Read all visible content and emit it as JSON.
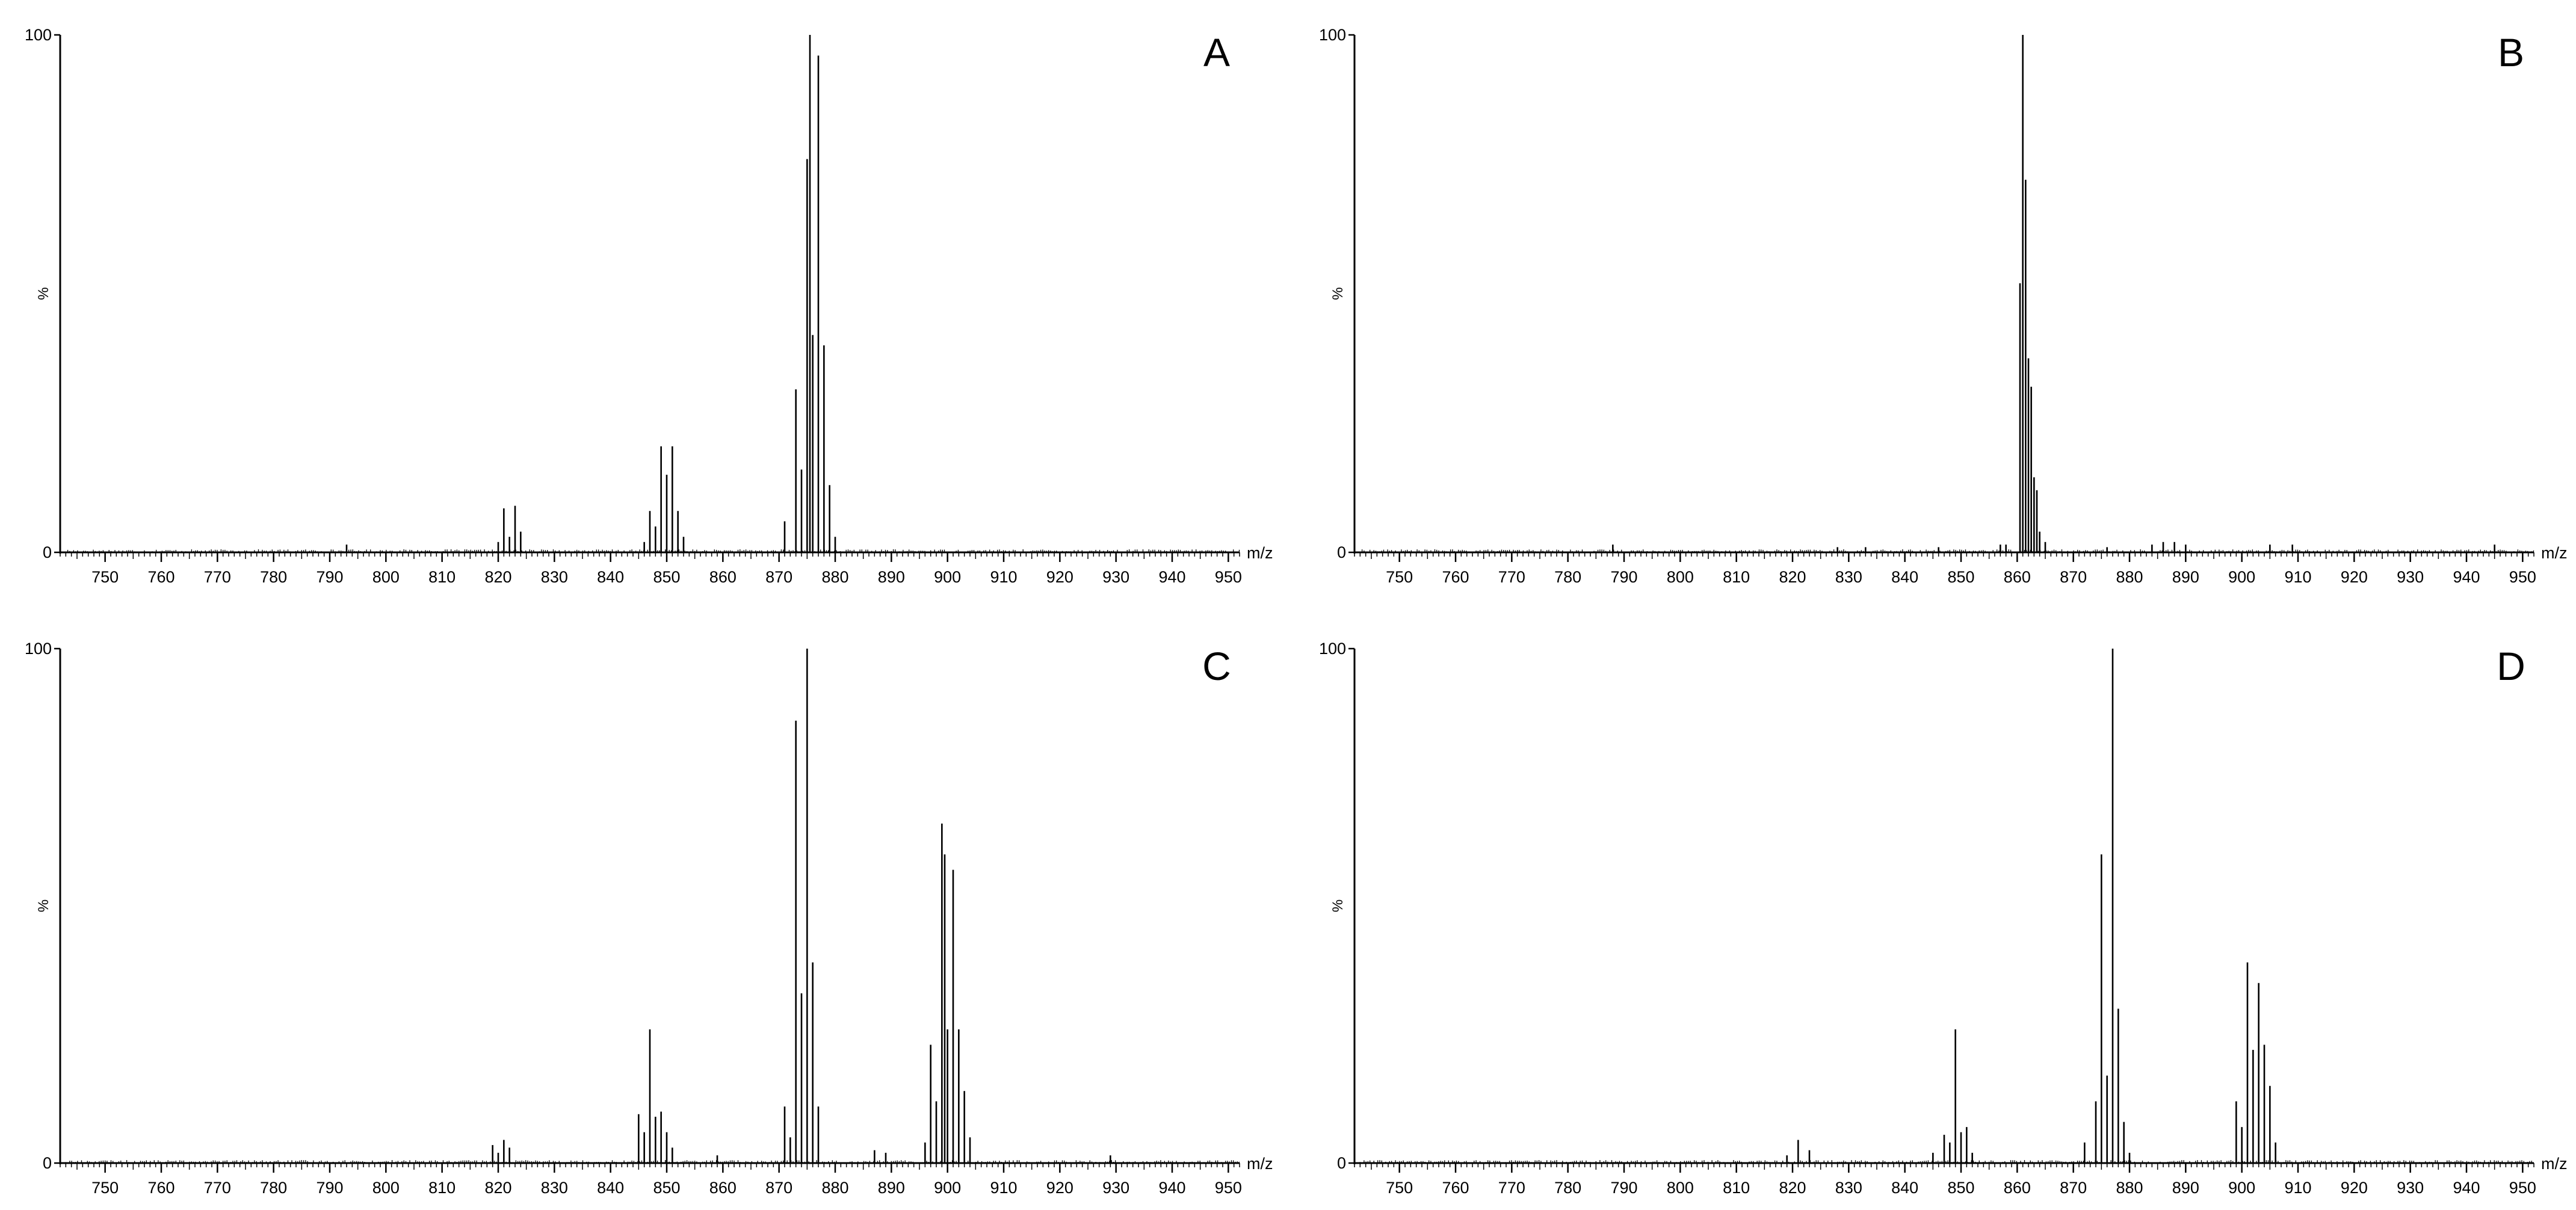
{
  "chart_data": [
    {
      "type": "line",
      "panel_label": "A",
      "xlabel": "m/z",
      "ylabel": "%",
      "xlim": [
        742,
        952
      ],
      "ylim": [
        0,
        100
      ],
      "x_ticks": [
        750,
        760,
        770,
        780,
        790,
        800,
        810,
        820,
        830,
        840,
        850,
        860,
        870,
        880,
        890,
        900,
        910,
        920,
        930,
        940,
        950
      ],
      "y_ticks": [
        0,
        100
      ],
      "peaks": [
        {
          "mz": 793,
          "intensity": 1.5
        },
        {
          "mz": 820,
          "intensity": 2
        },
        {
          "mz": 821,
          "intensity": 8.5
        },
        {
          "mz": 822,
          "intensity": 3
        },
        {
          "mz": 823,
          "intensity": 9
        },
        {
          "mz": 824,
          "intensity": 4
        },
        {
          "mz": 846,
          "intensity": 2
        },
        {
          "mz": 847,
          "intensity": 8
        },
        {
          "mz": 848,
          "intensity": 5
        },
        {
          "mz": 849,
          "intensity": 20.5
        },
        {
          "mz": 850,
          "intensity": 15
        },
        {
          "mz": 851,
          "intensity": 20.5
        },
        {
          "mz": 852,
          "intensity": 8
        },
        {
          "mz": 853,
          "intensity": 3
        },
        {
          "mz": 871,
          "intensity": 6
        },
        {
          "mz": 873,
          "intensity": 31.5
        },
        {
          "mz": 874,
          "intensity": 16
        },
        {
          "mz": 875,
          "intensity": 76
        },
        {
          "mz": 875.5,
          "intensity": 100
        },
        {
          "mz": 876,
          "intensity": 42
        },
        {
          "mz": 877,
          "intensity": 96
        },
        {
          "mz": 878,
          "intensity": 40
        },
        {
          "mz": 879,
          "intensity": 13
        },
        {
          "mz": 880,
          "intensity": 3
        }
      ]
    },
    {
      "type": "line",
      "panel_label": "B",
      "xlabel": "m/z",
      "ylabel": "%",
      "xlim": [
        742,
        952
      ],
      "ylim": [
        0,
        100
      ],
      "x_ticks": [
        750,
        760,
        770,
        780,
        790,
        800,
        810,
        820,
        830,
        840,
        850,
        860,
        870,
        880,
        890,
        900,
        910,
        920,
        930,
        940,
        950
      ],
      "y_ticks": [
        0,
        100
      ],
      "peaks": [
        {
          "mz": 788,
          "intensity": 1.5
        },
        {
          "mz": 828,
          "intensity": 1
        },
        {
          "mz": 833,
          "intensity": 1
        },
        {
          "mz": 846,
          "intensity": 1
        },
        {
          "mz": 857,
          "intensity": 1.5
        },
        {
          "mz": 858,
          "intensity": 1.5
        },
        {
          "mz": 860.5,
          "intensity": 52
        },
        {
          "mz": 861,
          "intensity": 100
        },
        {
          "mz": 861.5,
          "intensity": 72
        },
        {
          "mz": 862,
          "intensity": 37.5
        },
        {
          "mz": 862.5,
          "intensity": 32
        },
        {
          "mz": 863,
          "intensity": 14.5
        },
        {
          "mz": 863.5,
          "intensity": 12
        },
        {
          "mz": 864,
          "intensity": 4
        },
        {
          "mz": 865,
          "intensity": 2
        },
        {
          "mz": 876,
          "intensity": 1
        },
        {
          "mz": 884,
          "intensity": 1.5
        },
        {
          "mz": 886,
          "intensity": 2
        },
        {
          "mz": 888,
          "intensity": 2
        },
        {
          "mz": 890,
          "intensity": 1.5
        },
        {
          "mz": 905,
          "intensity": 1.5
        },
        {
          "mz": 909,
          "intensity": 1.5
        },
        {
          "mz": 945,
          "intensity": 1.5
        }
      ]
    },
    {
      "type": "line",
      "panel_label": "C",
      "xlabel": "m/z",
      "ylabel": "%",
      "xlim": [
        742,
        952
      ],
      "ylim": [
        0,
        100
      ],
      "x_ticks": [
        750,
        760,
        770,
        780,
        790,
        800,
        810,
        820,
        830,
        840,
        850,
        860,
        870,
        880,
        890,
        900,
        910,
        920,
        930,
        940,
        950
      ],
      "y_ticks": [
        0,
        100
      ],
      "peaks": [
        {
          "mz": 819,
          "intensity": 3.5
        },
        {
          "mz": 820,
          "intensity": 2
        },
        {
          "mz": 821,
          "intensity": 4.5
        },
        {
          "mz": 822,
          "intensity": 3
        },
        {
          "mz": 845,
          "intensity": 9.5
        },
        {
          "mz": 846,
          "intensity": 6
        },
        {
          "mz": 847,
          "intensity": 26
        },
        {
          "mz": 848,
          "intensity": 9
        },
        {
          "mz": 849,
          "intensity": 10
        },
        {
          "mz": 850,
          "intensity": 6
        },
        {
          "mz": 851,
          "intensity": 3
        },
        {
          "mz": 859,
          "intensity": 1.5
        },
        {
          "mz": 871,
          "intensity": 11
        },
        {
          "mz": 872,
          "intensity": 5
        },
        {
          "mz": 873,
          "intensity": 86
        },
        {
          "mz": 874,
          "intensity": 33
        },
        {
          "mz": 875,
          "intensity": 100
        },
        {
          "mz": 876,
          "intensity": 39
        },
        {
          "mz": 877,
          "intensity": 11
        },
        {
          "mz": 887,
          "intensity": 2.5
        },
        {
          "mz": 889,
          "intensity": 2
        },
        {
          "mz": 896,
          "intensity": 4
        },
        {
          "mz": 897,
          "intensity": 23
        },
        {
          "mz": 898,
          "intensity": 12
        },
        {
          "mz": 899,
          "intensity": 66
        },
        {
          "mz": 899.5,
          "intensity": 60
        },
        {
          "mz": 900,
          "intensity": 26
        },
        {
          "mz": 901,
          "intensity": 57
        },
        {
          "mz": 902,
          "intensity": 26
        },
        {
          "mz": 903,
          "intensity": 14
        },
        {
          "mz": 904,
          "intensity": 5
        },
        {
          "mz": 929,
          "intensity": 1.5
        }
      ]
    },
    {
      "type": "line",
      "panel_label": "D",
      "xlabel": "m/z",
      "ylabel": "%",
      "xlim": [
        742,
        952
      ],
      "ylim": [
        0,
        100
      ],
      "x_ticks": [
        750,
        760,
        770,
        780,
        790,
        800,
        810,
        820,
        830,
        840,
        850,
        860,
        870,
        880,
        890,
        900,
        910,
        920,
        930,
        940,
        950
      ],
      "y_ticks": [
        0,
        100
      ],
      "peaks": [
        {
          "mz": 819,
          "intensity": 1.5
        },
        {
          "mz": 821,
          "intensity": 4.5
        },
        {
          "mz": 823,
          "intensity": 2.5
        },
        {
          "mz": 845,
          "intensity": 2
        },
        {
          "mz": 847,
          "intensity": 5.5
        },
        {
          "mz": 848,
          "intensity": 4
        },
        {
          "mz": 849,
          "intensity": 26
        },
        {
          "mz": 850,
          "intensity": 6
        },
        {
          "mz": 851,
          "intensity": 7
        },
        {
          "mz": 852,
          "intensity": 2
        },
        {
          "mz": 872,
          "intensity": 4
        },
        {
          "mz": 874,
          "intensity": 12
        },
        {
          "mz": 875,
          "intensity": 60
        },
        {
          "mz": 876,
          "intensity": 17
        },
        {
          "mz": 877,
          "intensity": 100
        },
        {
          "mz": 878,
          "intensity": 30
        },
        {
          "mz": 879,
          "intensity": 8
        },
        {
          "mz": 880,
          "intensity": 2
        },
        {
          "mz": 899,
          "intensity": 12
        },
        {
          "mz": 900,
          "intensity": 7
        },
        {
          "mz": 901,
          "intensity": 39
        },
        {
          "mz": 902,
          "intensity": 22
        },
        {
          "mz": 903,
          "intensity": 35
        },
        {
          "mz": 904,
          "intensity": 23
        },
        {
          "mz": 905,
          "intensity": 15
        },
        {
          "mz": 906,
          "intensity": 4
        }
      ]
    }
  ]
}
